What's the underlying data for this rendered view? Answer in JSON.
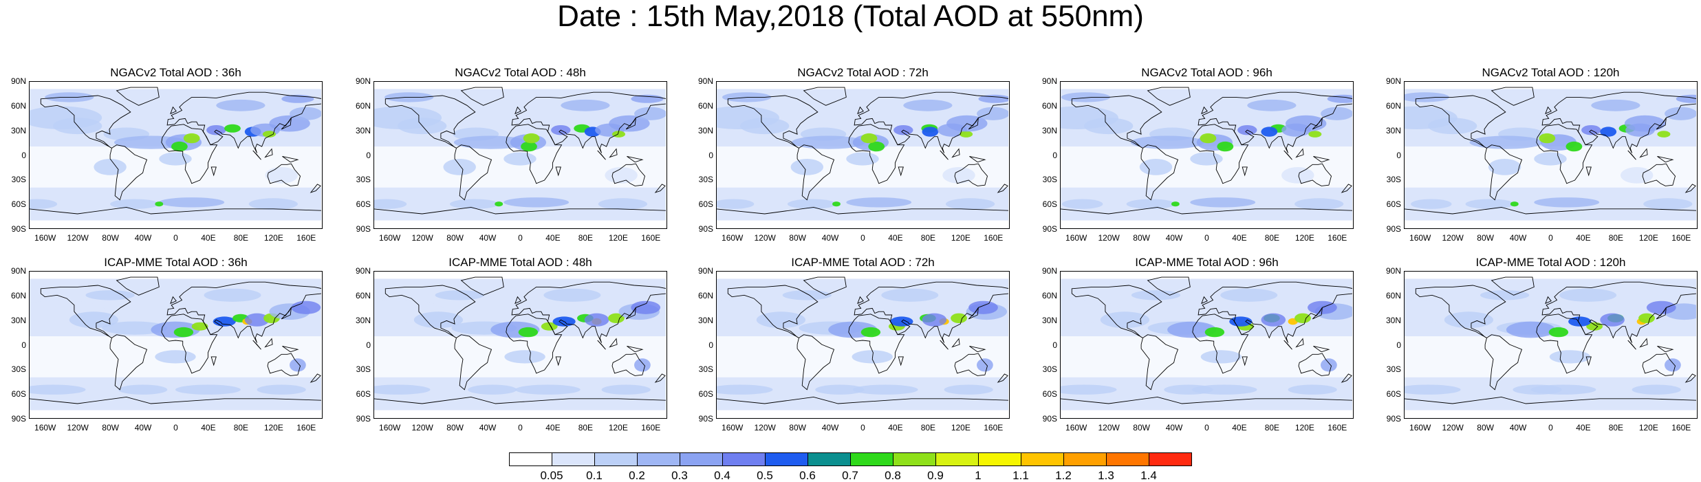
{
  "title": "Date : 15th May,2018 (Total AOD at 550nm)",
  "lat_ticks": [
    "90N",
    "60N",
    "30N",
    "0",
    "30S",
    "60S",
    "90S"
  ],
  "lon_ticks": [
    "160W",
    "120W",
    "80W",
    "40W",
    "0",
    "40E",
    "80E",
    "120E",
    "160E"
  ],
  "panels": [
    {
      "title": "NGACv2 Total AOD : 36h"
    },
    {
      "title": "NGACv2 Total AOD : 48h"
    },
    {
      "title": "NGACv2 Total AOD : 72h"
    },
    {
      "title": "NGACv2 Total AOD : 96h"
    },
    {
      "title": "NGACv2 Total AOD : 120h"
    },
    {
      "title": "ICAP-MME Total AOD : 36h"
    },
    {
      "title": "ICAP-MME Total AOD : 48h"
    },
    {
      "title": "ICAP-MME Total AOD : 72h"
    },
    {
      "title": "ICAP-MME Total AOD : 96h"
    },
    {
      "title": "ICAP-MME Total AOD : 120h"
    }
  ],
  "colorbar": {
    "labels": [
      "0.05",
      "0.1",
      "0.2",
      "0.3",
      "0.4",
      "0.5",
      "0.6",
      "0.7",
      "0.8",
      "0.9",
      "1",
      "1.1",
      "1.2",
      "1.3",
      "1.4"
    ],
    "colors": [
      "#ffffff",
      "#dbe5fb",
      "#bcd0f7",
      "#9fb6f4",
      "#8ba3f2",
      "#6f7ff0",
      "#1f5cef",
      "#0b8f8f",
      "#2fd91b",
      "#8fe01a",
      "#d8f212",
      "#f6f600",
      "#ffc400",
      "#ffa000",
      "#ff7600",
      "#ff2a10"
    ]
  }
}
